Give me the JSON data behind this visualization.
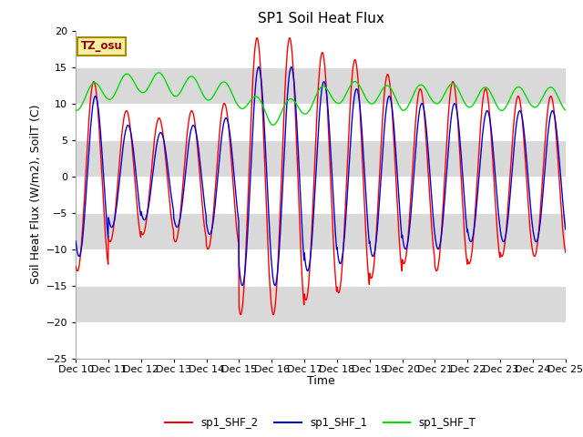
{
  "title": "SP1 Soil Heat Flux",
  "ylabel": "Soil Heat Flux (W/m2), SoilT (C)",
  "xlabel": "Time",
  "ylim": [
    -25,
    20
  ],
  "yticks": [
    -25,
    -20,
    -15,
    -10,
    -5,
    0,
    5,
    10,
    15,
    20
  ],
  "xtick_labels": [
    "Dec 10",
    "Dec 11",
    "Dec 12",
    "Dec 13",
    "Dec 14",
    "Dec 15",
    "Dec 16",
    "Dec 17",
    "Dec 18",
    "Dec 19",
    "Dec 20",
    "Dec 21",
    "Dec 22",
    "Dec 23",
    "Dec 24",
    "Dec 25"
  ],
  "bg_color": "#ffffff",
  "plot_bg": "#ffffff",
  "band_color": "#d9d9d9",
  "line_red": "#ff0000",
  "line_blue": "#0000dd",
  "line_green": "#00dd00",
  "legend_labels": [
    "sp1_SHF_2",
    "sp1_SHF_1",
    "sp1_SHF_T"
  ],
  "tz_label": "TZ_osu",
  "title_fontsize": 11,
  "axis_label_fontsize": 9,
  "tick_fontsize": 8
}
